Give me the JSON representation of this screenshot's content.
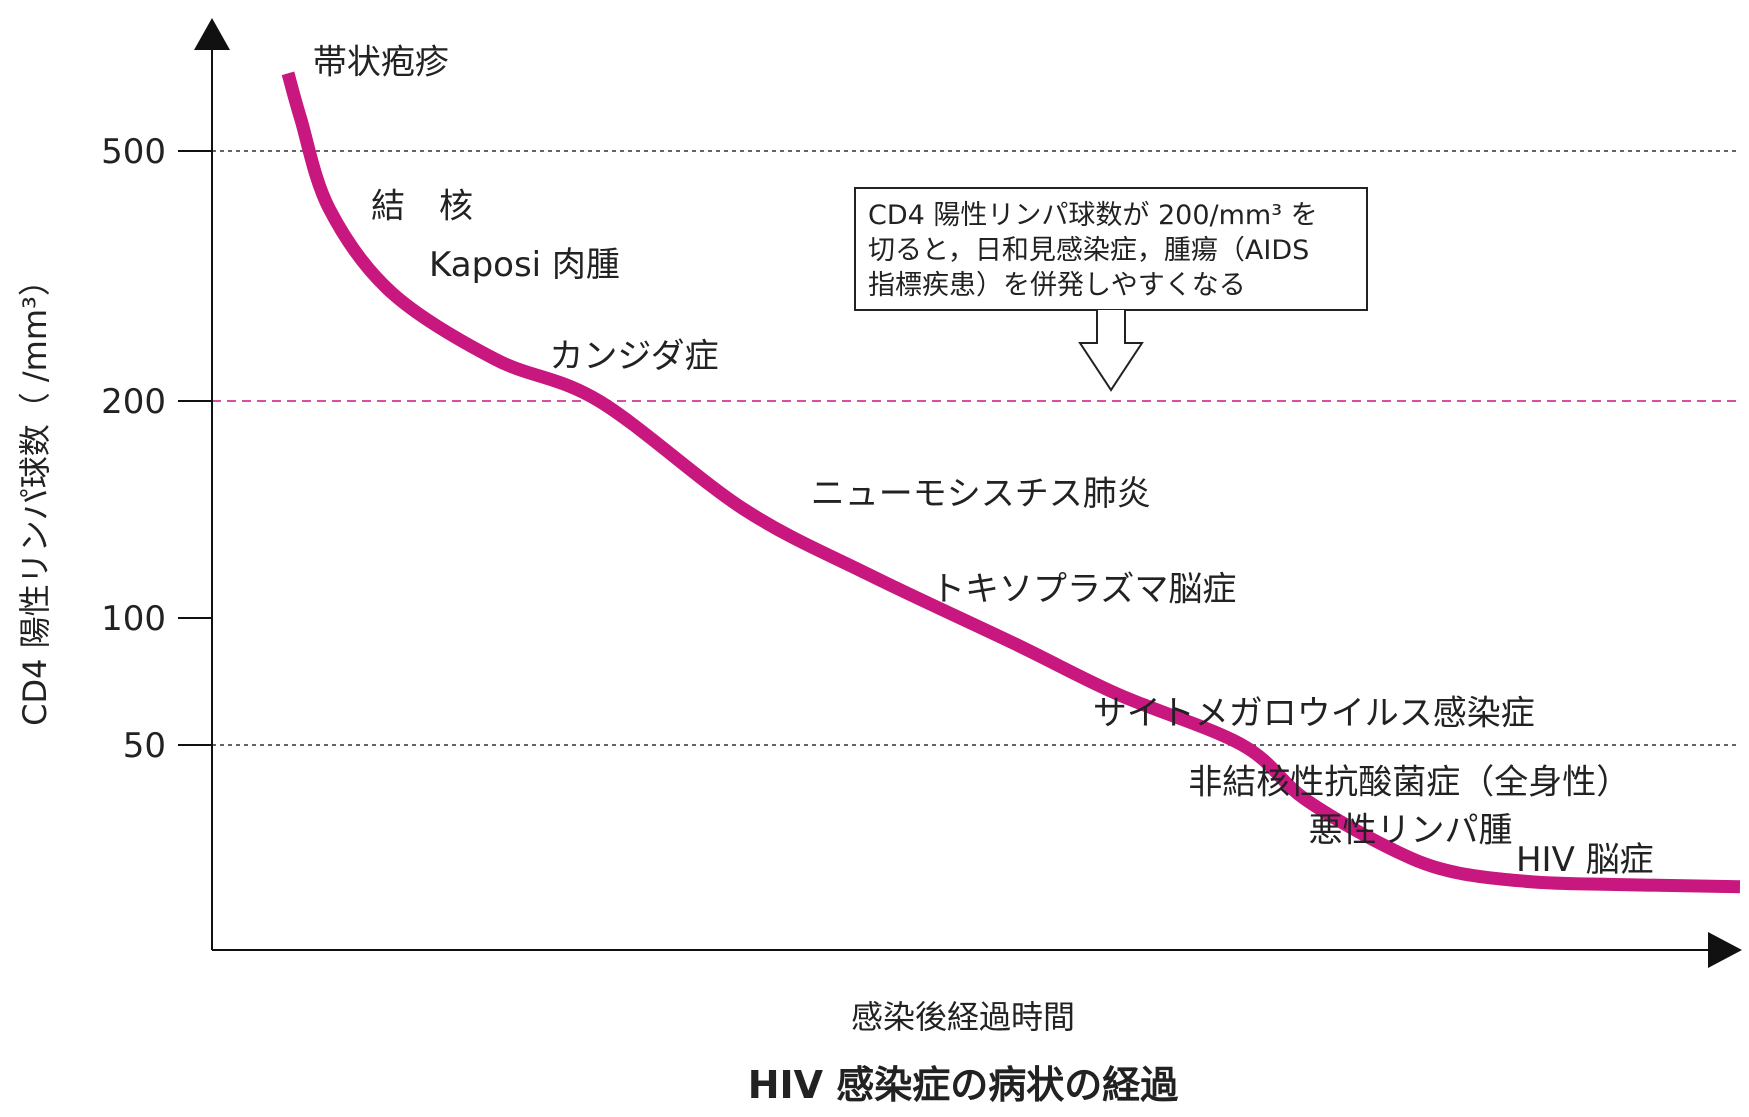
{
  "chart_data": {
    "type": "line",
    "title": "HIV 感染症の病状の経過",
    "xlabel": "感染後経過時間",
    "ylabel": "CD4 陽性リンパ球数（ /mm³）",
    "y_ticks": [
      {
        "value": 500,
        "label": "500",
        "line": "dotted"
      },
      {
        "value": 200,
        "label": "200",
        "line": "dashed-threshold"
      },
      {
        "value": 100,
        "label": "100",
        "line": "none"
      },
      {
        "value": 50,
        "label": "50",
        "line": "dotted"
      }
    ],
    "series": [
      {
        "color": "#c8177f",
        "points": [
          [
            0.0,
            640
          ],
          [
            0.3,
            560
          ],
          [
            1.0,
            430
          ],
          [
            2.5,
            330
          ],
          [
            5,
            250
          ],
          [
            7.5,
            200
          ],
          [
            11,
            150
          ],
          [
            14,
            120
          ],
          [
            17.5,
            90
          ],
          [
            20,
            70
          ],
          [
            23,
            50
          ],
          [
            24.5,
            40
          ],
          [
            26.5,
            31
          ],
          [
            28,
            26.5
          ],
          [
            30,
            24.5
          ],
          [
            32,
            24
          ],
          [
            35,
            23.6
          ]
        ]
      }
    ],
    "annotations": [
      {
        "text": "帯状疱疹",
        "x": 0.6,
        "y": 640
      },
      {
        "text": "結　核",
        "x": 2.0,
        "y": 420
      },
      {
        "text": "Kaposi 肉腫",
        "x": 3.4,
        "y": 350
      },
      {
        "text": "カンジダ症",
        "x": 6.3,
        "y": 240
      },
      {
        "text": "ニューモシスチス肺炎",
        "x": 12.6,
        "y": 152
      },
      {
        "text": "トキソプラズマ脳症",
        "x": 15.5,
        "y": 108
      },
      {
        "text": "サイトメガロウイルス感染症",
        "x": 19.4,
        "y": 58
      },
      {
        "text": "非結核性抗酸菌症（全身性）",
        "x": 21.7,
        "y": 41
      },
      {
        "text": "悪性リンパ腫",
        "x": 24.6,
        "y": 32
      },
      {
        "text": "HIV 脳症",
        "x": 29.6,
        "y": 26.5
      }
    ],
    "callout": {
      "lines": [
        "CD4 陽性リンパ球数が 200/mm³ を",
        "切ると，日和見感染症，腫瘍（AIDS",
        "指標疾患）を併発しやすくなる"
      ],
      "points_to_y": 200
    },
    "colors": {
      "curve": "#c8177f",
      "threshold_line": "#c8177f",
      "grid_line": "#333333",
      "axis": "#111111"
    },
    "grid": "horizontal reference lines at 500 and 50 (dotted), 200 (dashed, magenta)",
    "legend": "none"
  }
}
